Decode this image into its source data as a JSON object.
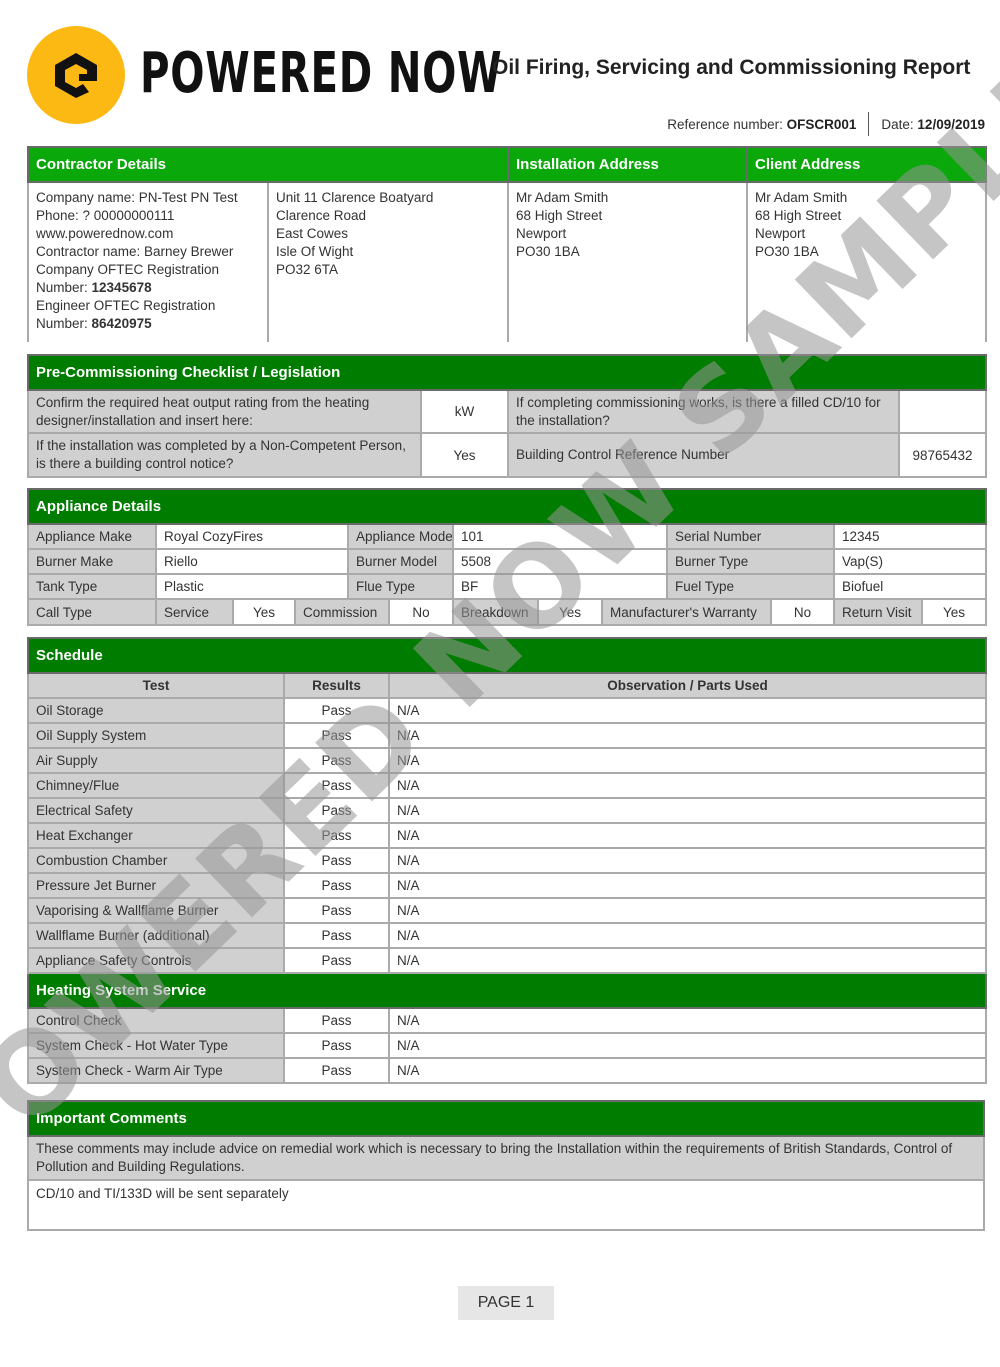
{
  "header": {
    "brand": "POWERED NOW",
    "title": "Oil Firing, Servicing and Commissioning Report",
    "reference_label": "Reference number:",
    "reference": "OFSCR001",
    "date_label": "Date:",
    "date": "12/09/2019",
    "logo_color": "#fdb913"
  },
  "contractor": {
    "heading": "Contractor Details",
    "company": "Company name: PN-Test PN Test",
    "phone": "Phone: ? 00000000111",
    "web": "www.powerednow.com",
    "contractor_name": "Contractor name: Barney Brewer",
    "company_oftec_label": "Company OFTEC Registration Number:",
    "company_oftec": "12345678",
    "engineer_oftec_label": "Engineer OFTEC Registration Number:",
    "engineer_oftec": "86420975",
    "address": [
      "Unit 11 Clarence Boatyard",
      "Clarence Road",
      "East Cowes",
      "Isle Of Wight",
      "PO32 6TA"
    ]
  },
  "installation": {
    "heading": "Installation Address",
    "lines": [
      "Mr Adam Smith",
      "68 High Street",
      "Newport",
      "PO30 1BA"
    ]
  },
  "client": {
    "heading": "Client Address",
    "lines": [
      "Mr Adam Smith",
      "68 High Street",
      "Newport",
      "PO30 1BA"
    ]
  },
  "precommissioning": {
    "heading": "Pre-Commissioning Checklist / Legislation",
    "q1": "Confirm the required heat output rating from the heating designer/installation and insert here:",
    "a1": "kW",
    "q2": "If completing commissioning works, is there a filled CD/10 for the installation?",
    "a2": "",
    "q3": "If the installation was completed by a Non-Competent Person, is there a building control notice?",
    "a3": "Yes",
    "q4": "Building Control Reference Number",
    "a4": "98765432"
  },
  "appliance": {
    "heading": "Appliance Details",
    "rows": [
      [
        "Appliance Make",
        "Royal CozyFires",
        "Appliance Model",
        "101",
        "Serial Number",
        "12345"
      ],
      [
        "Burner Make",
        "Riello",
        "Burner Model",
        "5508",
        "Burner Type",
        "Vap(S)"
      ],
      [
        "Tank Type",
        "Plastic",
        "Flue Type",
        "BF",
        "Fuel Type",
        "Biofuel"
      ]
    ],
    "call": [
      "Call Type",
      "Service",
      "Yes",
      "Commission",
      "No",
      "Breakdown",
      "Yes",
      "Manufacturer's Warranty",
      "No",
      "Return Visit",
      "Yes"
    ]
  },
  "schedule": {
    "heading": "Schedule",
    "columns": [
      "Test",
      "Results",
      "Observation / Parts Used"
    ],
    "rows": [
      [
        "Oil Storage",
        "Pass",
        "N/A"
      ],
      [
        "Oil Supply System",
        "Pass",
        "N/A"
      ],
      [
        "Air Supply",
        "Pass",
        "N/A"
      ],
      [
        "Chimney/Flue",
        "Pass",
        "N/A"
      ],
      [
        "Electrical Safety",
        "Pass",
        "N/A"
      ],
      [
        "Heat Exchanger",
        "Pass",
        "N/A"
      ],
      [
        "Combustion Chamber",
        "Pass",
        "N/A"
      ],
      [
        "Pressure Jet Burner",
        "Pass",
        "N/A"
      ],
      [
        "Vaporising & Wallflame Burner",
        "Pass",
        "N/A"
      ],
      [
        "Wallflame Burner (additional)",
        "Pass",
        "N/A"
      ],
      [
        "Appliance Safety Controls",
        "Pass",
        "N/A"
      ]
    ],
    "service_heading": "Heating System Service",
    "service_rows": [
      [
        "Control Check",
        "Pass",
        "N/A"
      ],
      [
        "System Check - Hot Water Type",
        "Pass",
        "N/A"
      ],
      [
        "System Check - Warm Air Type",
        "Pass",
        "N/A"
      ]
    ]
  },
  "comments": {
    "heading": "Important Comments",
    "notice": "These comments may include advice on remedial work which is necessary to bring the Installation within the requirements of British Standards, Control of Pollution and Building Regulations.",
    "text": "CD/10 and TI/133D will be sent separately"
  },
  "watermark": "POWERED NOW SAMPLE",
  "footer": {
    "page": "PAGE 1"
  }
}
